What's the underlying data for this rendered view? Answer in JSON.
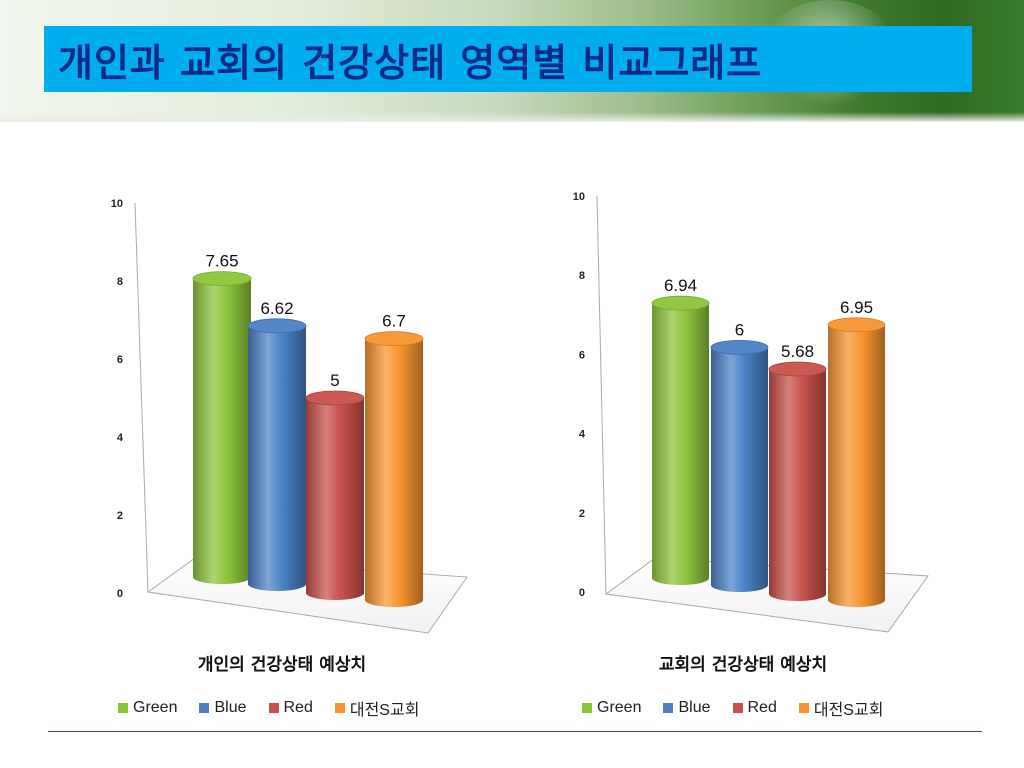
{
  "slide": {
    "title": "개인과 교회의 건강상태 영역별 비교그래프"
  },
  "colors": {
    "Green": "#8cc43a",
    "Blue": "#4a80c4",
    "Red": "#c8504a",
    "Orange": "#f7942f",
    "title_bg": "#00aeef",
    "title_text": "#0c2a8a"
  },
  "chart_data": [
    {
      "type": "bar",
      "style": "3d-cylinder",
      "title": "개인의 건강상태 예상치",
      "categories": [
        "Green",
        "Blue",
        "Red",
        "대전S교회"
      ],
      "values": [
        7.65,
        6.62,
        5,
        6.7
      ],
      "value_labels": [
        "7.65",
        "6.62",
        "5",
        "6.7"
      ],
      "yticks": [
        "0",
        "2",
        "4",
        "6",
        "8",
        "10"
      ],
      "ylim": [
        0,
        10
      ],
      "legend_position": "bottom",
      "grid": false
    },
    {
      "type": "bar",
      "style": "3d-cylinder",
      "title": "교회의 건강상태 예상치",
      "categories": [
        "Green",
        "Blue",
        "Red",
        "대전S교회"
      ],
      "values": [
        6.94,
        6,
        5.68,
        6.95
      ],
      "value_labels": [
        "6.94",
        "6",
        "5.68",
        "6.95"
      ],
      "yticks": [
        "0",
        "2",
        "4",
        "6",
        "8",
        "10"
      ],
      "ylim": [
        0,
        10
      ],
      "legend_position": "bottom",
      "grid": false
    }
  ]
}
